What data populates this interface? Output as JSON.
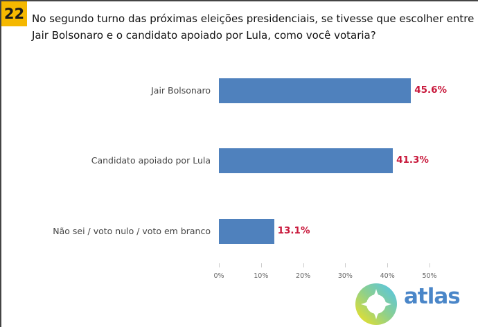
{
  "question_number": "22",
  "question": "No segundo turno das próximas eleições presidenciais, se tivesse que escolher entre Jair Bolsonaro e o candidato apoiado por Lula, como você votaria?",
  "brand": "atlas",
  "chart_data": {
    "type": "bar",
    "orientation": "horizontal",
    "categories": [
      "Jair Bolsonaro",
      "Candidato apoiado por Lula",
      "Não sei / voto nulo / voto em branco"
    ],
    "values": [
      45.6,
      41.3,
      13.1
    ],
    "value_labels": [
      "45.6%",
      "41.3%",
      "13.1%"
    ],
    "xlim": [
      0,
      50
    ],
    "x_ticks": [
      "0%",
      "10%",
      "20%",
      "30%",
      "40%",
      "50%"
    ],
    "bar_color": "#4f81bd",
    "label_color": "#c8173a",
    "grid": false
  }
}
